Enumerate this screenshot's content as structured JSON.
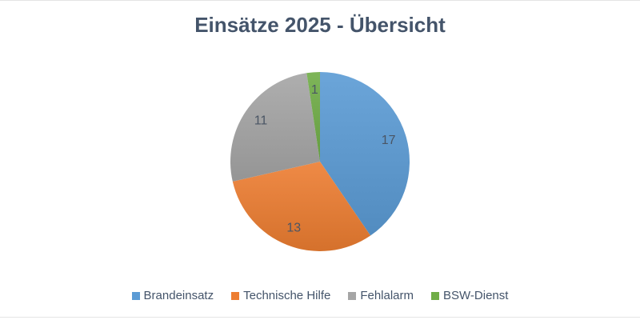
{
  "chart_data": {
    "type": "pie",
    "title": "Einsätze 2025 - Übersicht",
    "categories": [
      "Brandeinsatz",
      "Technische Hilfe",
      "Fehlalarm",
      "BSW-Dienst"
    ],
    "values": [
      17,
      13,
      11,
      1
    ],
    "colors": [
      "#5B9BD5",
      "#ED7D31",
      "#A5A5A5",
      "#70AD47"
    ],
    "data_labels": [
      17,
      13,
      11,
      1
    ],
    "start_angle_deg": 0,
    "direction": "clockwise",
    "legend_position": "bottom"
  },
  "colors": {
    "background": "#FFFFFF",
    "title_text": "#44546A",
    "data_label_text": "#4A5564",
    "legend_text": "#44546A",
    "border_line": "#E4E4E4"
  }
}
